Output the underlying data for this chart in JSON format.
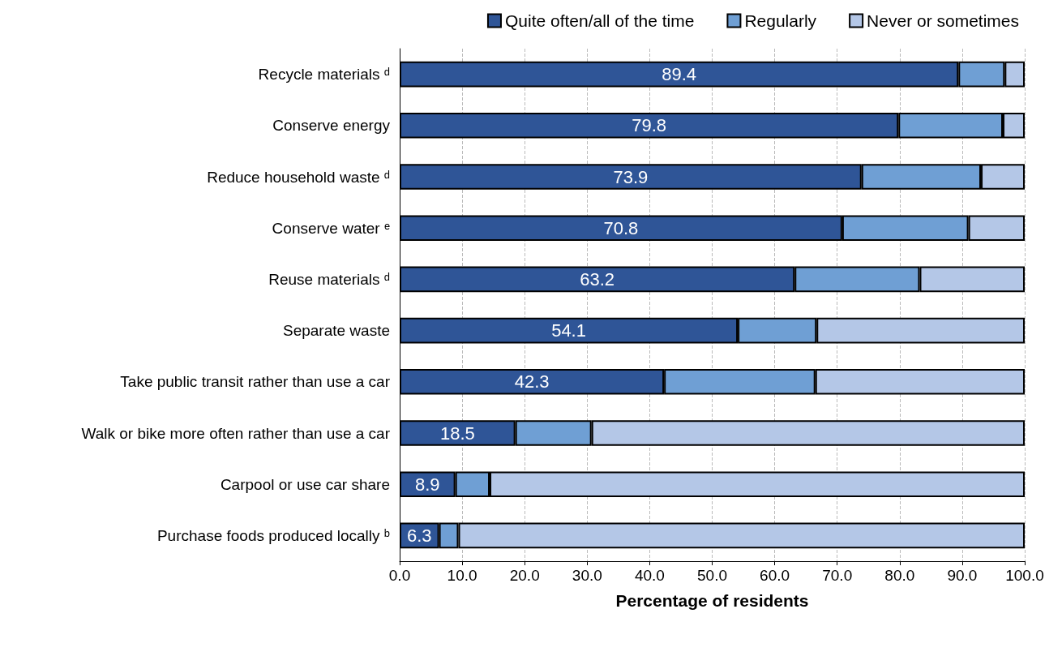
{
  "chart_data": {
    "type": "bar",
    "orientation": "horizontal",
    "stacked": true,
    "categories": [
      "Recycle materials ᵈ",
      "Conserve energy",
      "Reduce household waste ᵈ",
      "Conserve water ᵉ",
      "Reuse materials ᵈ",
      "Separate waste",
      "Take public transit rather than use a car",
      "Walk or bike more often rather than use a car",
      "Carpool or use car share",
      "Purchase foods produced locally ᵇ"
    ],
    "series": [
      {
        "name": "Quite often/all of the time",
        "color": "#2f5597",
        "values": [
          89.4,
          79.8,
          73.9,
          70.8,
          63.2,
          54.1,
          42.3,
          18.5,
          8.9,
          6.3
        ],
        "value_labels": [
          "89.4",
          "79.8",
          "73.9",
          "70.8",
          "63.2",
          "54.1",
          "42.3",
          "18.5",
          "8.9",
          "6.3"
        ]
      },
      {
        "name": "Regularly",
        "color": "#6f9fd4",
        "values": [
          7.4,
          16.7,
          19.1,
          20.2,
          20.0,
          12.6,
          24.2,
          12.2,
          5.5,
          3.1
        ]
      },
      {
        "name": "Never or sometimes",
        "color": "#b4c7e7",
        "values": [
          3.2,
          3.5,
          7.0,
          9.0,
          16.8,
          33.3,
          33.5,
          69.3,
          85.6,
          90.6
        ]
      }
    ],
    "xlim": [
      0,
      100
    ],
    "xticks": [
      {
        "value": 0,
        "label": "0.0"
      },
      {
        "value": 10,
        "label": "10.0"
      },
      {
        "value": 20,
        "label": "20.0"
      },
      {
        "value": 30,
        "label": "30.0"
      },
      {
        "value": 40,
        "label": "40.0"
      },
      {
        "value": 50,
        "label": "50.0"
      },
      {
        "value": 60,
        "label": "60.0"
      },
      {
        "value": 70,
        "label": "70.0"
      },
      {
        "value": 80,
        "label": "80.0"
      },
      {
        "value": 90,
        "label": "90.0"
      },
      {
        "value": 100,
        "label": "100.0"
      }
    ],
    "xlabel": "Percentage of residents",
    "grid": "x",
    "legend": "top"
  }
}
